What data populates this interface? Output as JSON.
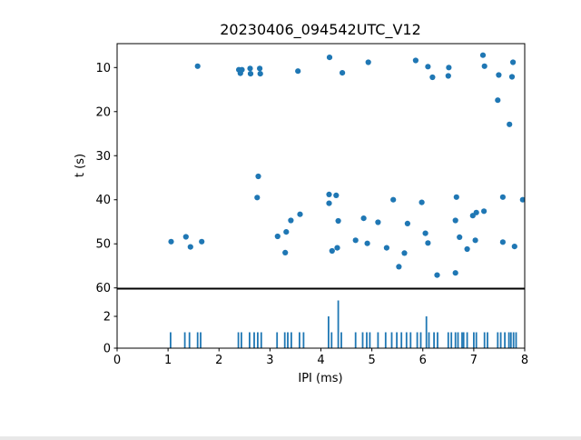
{
  "figure": {
    "title": "20230406_094542UTC_V12",
    "xlabel": "IPI (ms)",
    "ylabel": "t (s)"
  },
  "colors": {
    "marker": "#1f77b4",
    "axis": "#000000",
    "background": "#ffffff"
  },
  "chart_data": [
    {
      "type": "scatter",
      "title": "20230406_094542UTC_V12",
      "xlabel": "",
      "ylabel": "t (s)",
      "xlim": [
        0,
        8
      ],
      "ylim": [
        60,
        4.5
      ],
      "y_inverted": true,
      "grid": false,
      "yticks": [
        10,
        20,
        30,
        40,
        50,
        60
      ],
      "marker_color": "#1f77b4",
      "points": [
        [
          1.58,
          9.7
        ],
        [
          2.39,
          10.5
        ],
        [
          2.42,
          11.3
        ],
        [
          2.45,
          10.5
        ],
        [
          2.61,
          10.2
        ],
        [
          2.62,
          11.4
        ],
        [
          2.8,
          10.2
        ],
        [
          2.81,
          11.4
        ],
        [
          3.55,
          10.8
        ],
        [
          4.17,
          7.7
        ],
        [
          4.42,
          11.2
        ],
        [
          4.93,
          8.8
        ],
        [
          5.86,
          8.4
        ],
        [
          6.1,
          9.8
        ],
        [
          6.19,
          12.2
        ],
        [
          6.5,
          11.9
        ],
        [
          6.51,
          10.0
        ],
        [
          7.18,
          7.2
        ],
        [
          7.21,
          9.7
        ],
        [
          7.47,
          17.4
        ],
        [
          7.49,
          11.7
        ],
        [
          7.7,
          22.9
        ],
        [
          7.75,
          12.1
        ],
        [
          7.77,
          8.8
        ],
        [
          1.06,
          49.5
        ],
        [
          1.35,
          48.4
        ],
        [
          1.44,
          50.7
        ],
        [
          1.66,
          49.5
        ],
        [
          2.75,
          39.5
        ],
        [
          2.77,
          34.7
        ],
        [
          3.15,
          48.3
        ],
        [
          3.3,
          52.0
        ],
        [
          3.32,
          47.3
        ],
        [
          3.41,
          44.7
        ],
        [
          3.59,
          43.3
        ],
        [
          4.16,
          38.8
        ],
        [
          4.16,
          40.8
        ],
        [
          4.3,
          39.0
        ],
        [
          4.34,
          44.8
        ],
        [
          4.22,
          51.6
        ],
        [
          4.32,
          50.9
        ],
        [
          4.68,
          49.2
        ],
        [
          4.84,
          44.2
        ],
        [
          4.91,
          49.9
        ],
        [
          5.12,
          45.1
        ],
        [
          5.29,
          50.9
        ],
        [
          5.42,
          40.0
        ],
        [
          5.53,
          55.2
        ],
        [
          5.64,
          52.1
        ],
        [
          5.7,
          45.4
        ],
        [
          5.98,
          40.6
        ],
        [
          6.05,
          47.6
        ],
        [
          6.1,
          49.8
        ],
        [
          6.28,
          57.1
        ],
        [
          6.64,
          56.6
        ],
        [
          6.64,
          44.7
        ],
        [
          6.66,
          39.4
        ],
        [
          6.72,
          48.5
        ],
        [
          6.87,
          51.2
        ],
        [
          6.98,
          43.6
        ],
        [
          7.03,
          49.2
        ],
        [
          7.05,
          42.9
        ],
        [
          7.2,
          42.6
        ],
        [
          7.57,
          39.4
        ],
        [
          7.57,
          49.6
        ],
        [
          7.8,
          50.6
        ],
        [
          7.96,
          40.0
        ]
      ]
    },
    {
      "type": "bar",
      "title": "",
      "xlabel": "IPI (ms)",
      "ylabel": "",
      "xlim": [
        0,
        8
      ],
      "ylim": [
        0,
        3.77
      ],
      "grid": false,
      "yticks": [
        0,
        2
      ],
      "xticks": [
        0,
        1,
        2,
        3,
        4,
        5,
        6,
        7,
        8
      ],
      "bar_color": "#1f77b4",
      "bars": [
        [
          1.05,
          1
        ],
        [
          1.33,
          1
        ],
        [
          1.42,
          1
        ],
        [
          1.58,
          1
        ],
        [
          1.64,
          1
        ],
        [
          2.38,
          1
        ],
        [
          2.44,
          1
        ],
        [
          2.6,
          1
        ],
        [
          2.69,
          1
        ],
        [
          2.76,
          1
        ],
        [
          2.83,
          1
        ],
        [
          3.14,
          1
        ],
        [
          3.29,
          1
        ],
        [
          3.35,
          1
        ],
        [
          3.42,
          1
        ],
        [
          3.58,
          1
        ],
        [
          3.66,
          1
        ],
        [
          4.15,
          2
        ],
        [
          4.21,
          1
        ],
        [
          4.34,
          3
        ],
        [
          4.4,
          1
        ],
        [
          4.68,
          1
        ],
        [
          4.82,
          1
        ],
        [
          4.9,
          1
        ],
        [
          4.96,
          1
        ],
        [
          5.12,
          1
        ],
        [
          5.27,
          1
        ],
        [
          5.39,
          1
        ],
        [
          5.49,
          1
        ],
        [
          5.58,
          1
        ],
        [
          5.68,
          1
        ],
        [
          5.76,
          1
        ],
        [
          5.89,
          1
        ],
        [
          5.96,
          1
        ],
        [
          6.07,
          2
        ],
        [
          6.12,
          1
        ],
        [
          6.22,
          1
        ],
        [
          6.29,
          1
        ],
        [
          6.5,
          1
        ],
        [
          6.56,
          1
        ],
        [
          6.64,
          1
        ],
        [
          6.69,
          1
        ],
        [
          6.77,
          1
        ],
        [
          6.8,
          1
        ],
        [
          6.87,
          1
        ],
        [
          7.0,
          1
        ],
        [
          7.05,
          1
        ],
        [
          7.21,
          1
        ],
        [
          7.27,
          1
        ],
        [
          7.47,
          1
        ],
        [
          7.53,
          1
        ],
        [
          7.61,
          1
        ],
        [
          7.69,
          1
        ],
        [
          7.73,
          1
        ],
        [
          7.78,
          1
        ],
        [
          7.83,
          1
        ]
      ]
    }
  ]
}
